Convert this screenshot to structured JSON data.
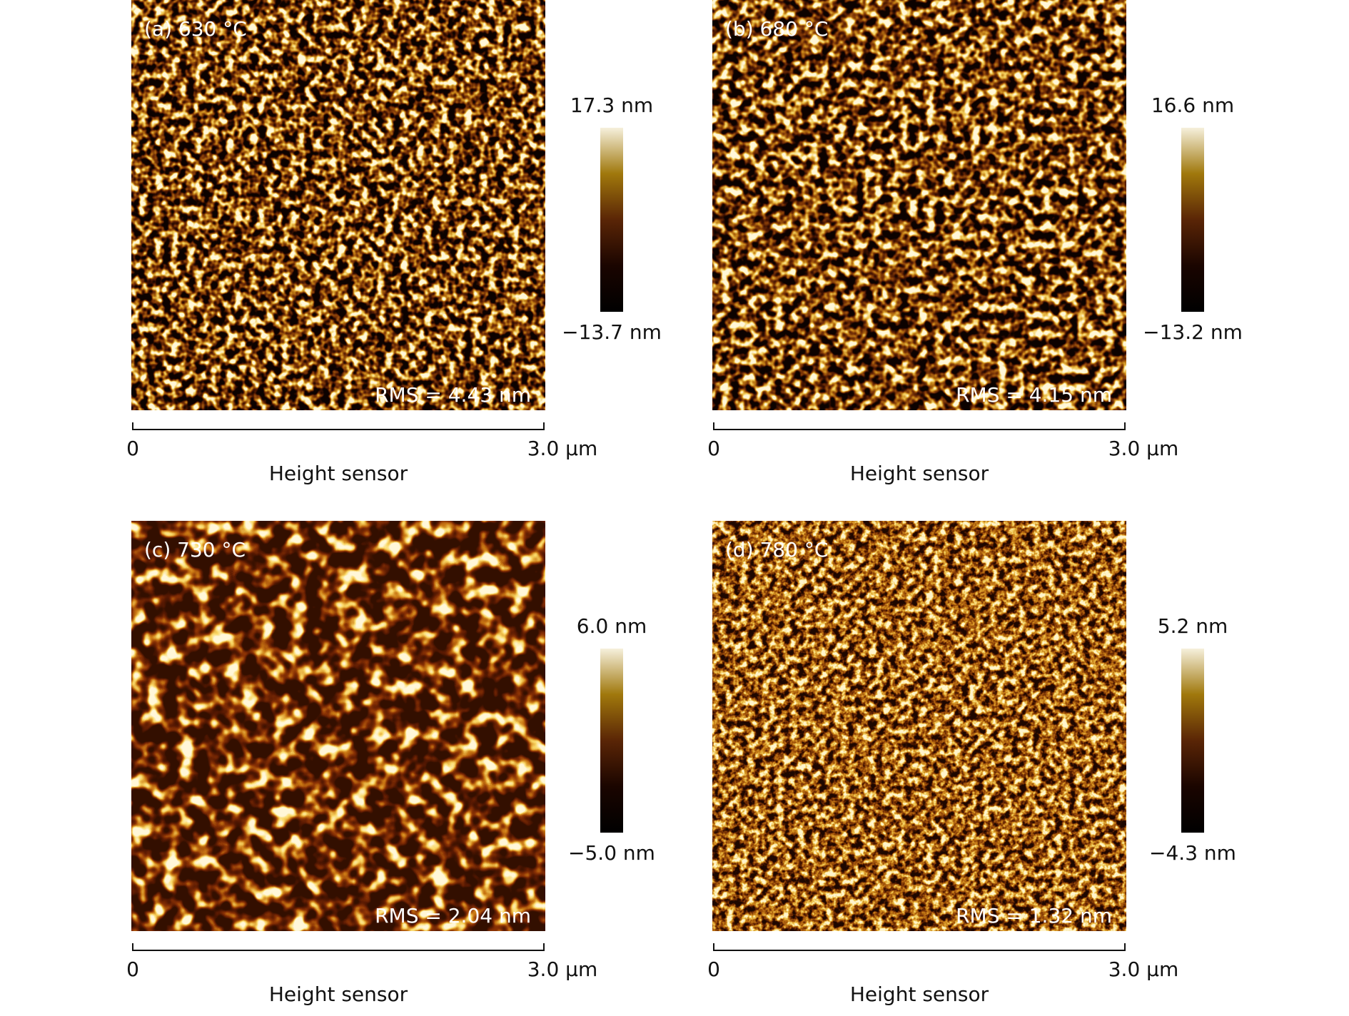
{
  "panels": [
    {
      "label": "(a) 630 °C",
      "max": "17.3 nm",
      "min": "−13.7 nm",
      "rms": "RMS = 4.43 nm",
      "scale_start": "0",
      "scale_end": "3.0 µm",
      "axis_label": "Height sensor"
    },
    {
      "label": "(b) 680 °C",
      "max": "16.6 nm",
      "min": "−13.2 nm",
      "rms": "RMS = 4.15 nm",
      "scale_start": "0",
      "scale_end": "3.0 µm",
      "axis_label": "Height sensor"
    },
    {
      "label": "(c) 730 °C",
      "max": "6.0 nm",
      "min": "−5.0 nm",
      "rms": "RMS = 2.04 nm",
      "scale_start": "0",
      "scale_end": "3.0 µm",
      "axis_label": "Height sensor"
    },
    {
      "label": "(d) 780 °C",
      "max": "5.2 nm",
      "min": "−4.3 nm",
      "rms": "RMS = 1.32 nm",
      "scale_start": "0",
      "scale_end": "3.0 µm",
      "axis_label": "Height sensor"
    }
  ]
}
